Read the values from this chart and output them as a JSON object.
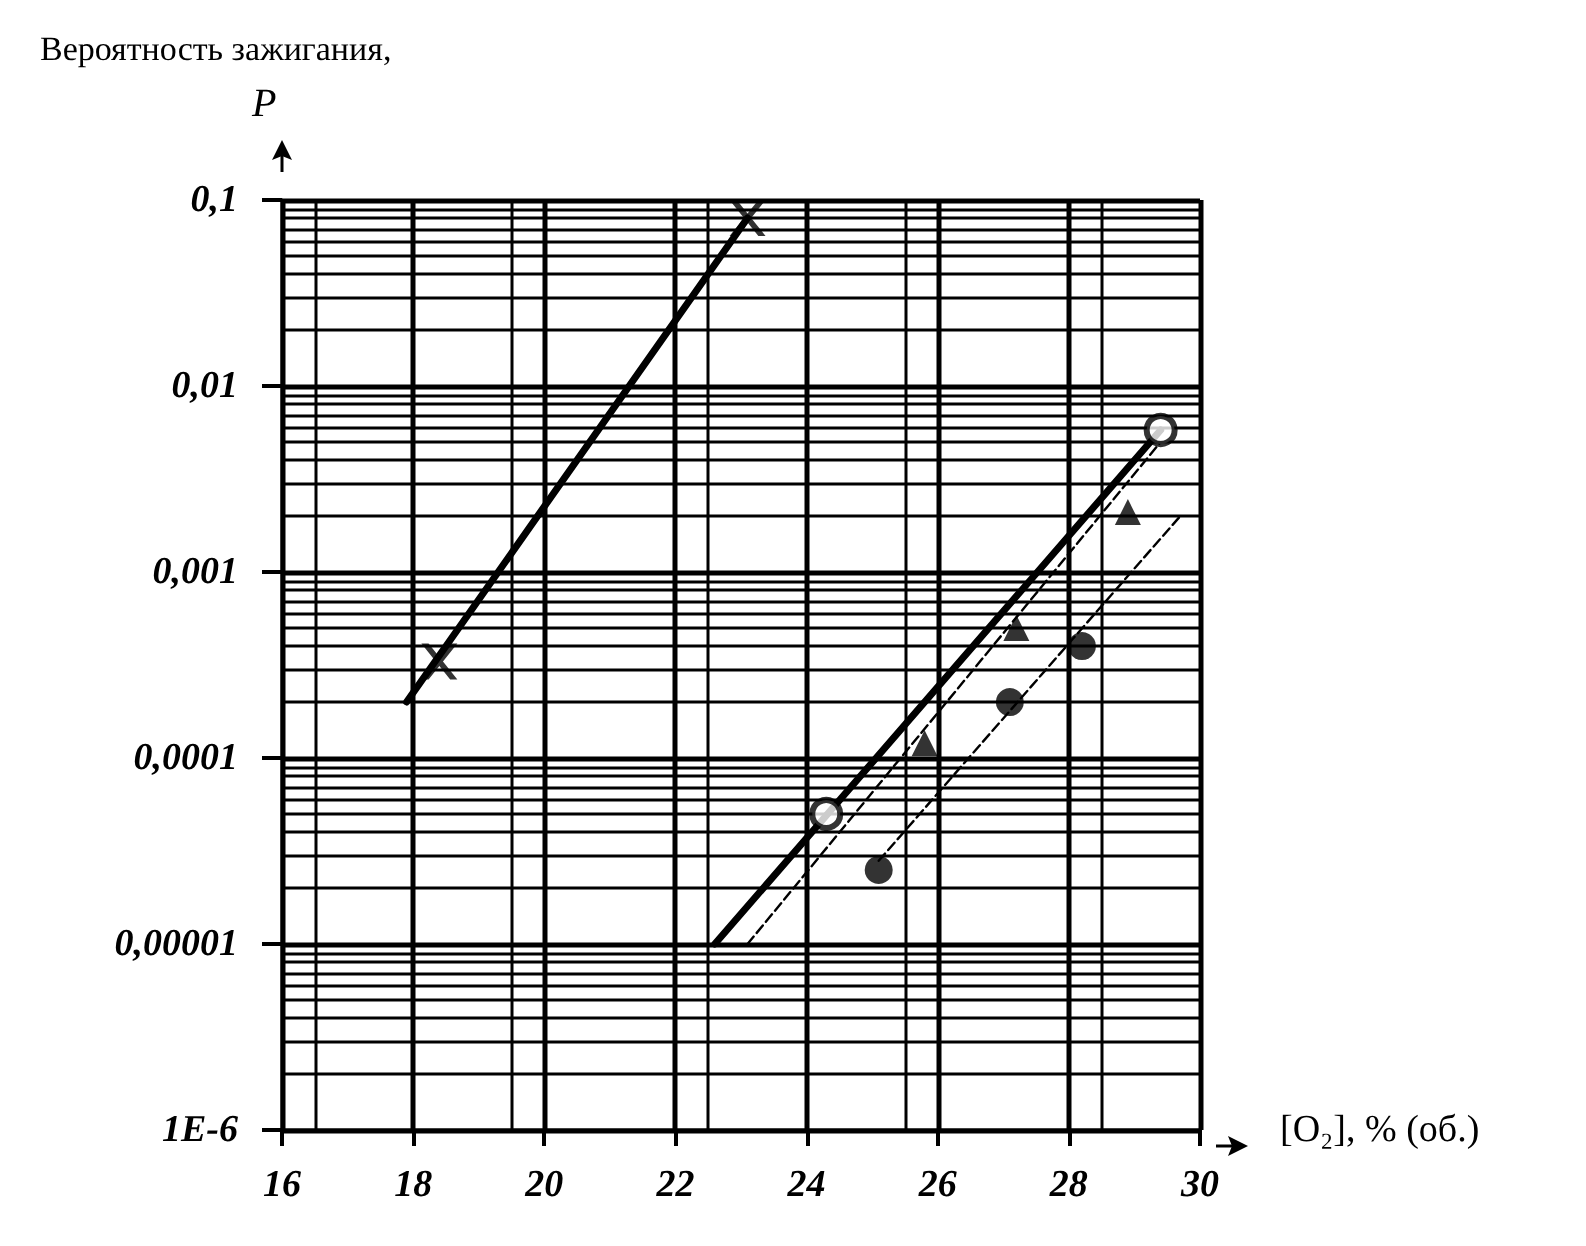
{
  "chart_data": {
    "type": "scatter",
    "ylabel": "Вероятность зажигания,\nP",
    "xlabel": "[O₂], % (об.)",
    "log": "y",
    "grid": true,
    "xlim": [
      16,
      30
    ],
    "xticks": [
      16,
      18,
      20,
      22,
      24,
      26,
      28,
      30
    ],
    "ylim": [
      1e-06,
      0.1
    ],
    "yticks": [
      {
        "value": 0.1,
        "label": "0,1"
      },
      {
        "value": 0.01,
        "label": "0,01"
      },
      {
        "value": 0.001,
        "label": "0,001"
      },
      {
        "value": 0.0001,
        "label": "0,0001"
      },
      {
        "value": 1e-05,
        "label": "0,00001"
      },
      {
        "value": 1e-06,
        "label": "1E-6"
      }
    ],
    "series": [
      {
        "marker": "cross",
        "color": "#000000",
        "x": [
          18.4,
          23.1
        ],
        "values": [
          0.00033,
          0.08
        ]
      },
      {
        "type": "line",
        "marker": "none",
        "line_style": "solid",
        "color": "#000000",
        "x": [
          17.9,
          23.1
        ],
        "values": [
          0.0002,
          0.08
        ]
      },
      {
        "marker": "circle",
        "color": "#ffffff",
        "x": [
          24.3,
          29.4
        ],
        "values": [
          5e-05,
          0.0058
        ]
      },
      {
        "type": "line",
        "marker": "none",
        "line_style": "solid",
        "color": "#000000",
        "x": [
          22.6,
          29.4
        ],
        "values": [
          1e-05,
          0.0058
        ]
      },
      {
        "marker": "triangle",
        "color": "#000000",
        "x": [
          25.8,
          27.2,
          28.9
        ],
        "values": [
          0.00012,
          0.0005,
          0.0021
        ]
      },
      {
        "type": "line",
        "marker": "none",
        "line_style": "dashed",
        "color": "#000000",
        "x": [
          23.1,
          29.4
        ],
        "values": [
          1e-05,
          0.005
        ]
      },
      {
        "marker": "circle",
        "color": "#000000",
        "x": [
          25.1,
          27.1,
          28.2
        ],
        "values": [
          2.5e-05,
          0.0002,
          0.0004
        ]
      },
      {
        "type": "line",
        "marker": "none",
        "line_style": "dashed",
        "color": "#000000",
        "x": [
          25.1,
          29.7
        ],
        "values": [
          2.8e-05,
          0.002
        ]
      }
    ]
  }
}
